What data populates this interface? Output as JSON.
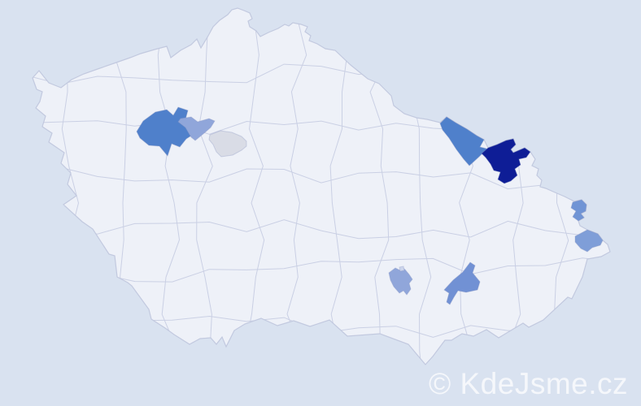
{
  "map": {
    "description": "Choropleth map of Czech Republic districts",
    "background_color": "#d9e2f0",
    "land_color": "#eef1f8",
    "district_border_color": "#c6cce2",
    "country_border_color": "#c2c9df",
    "highlighted_regions": [
      {
        "id": "district-central-west-large",
        "color": "#4f80cb"
      },
      {
        "id": "district-central-west-light",
        "color": "#90a6da"
      },
      {
        "id": "district-central-gray",
        "color": "#d9dce6"
      },
      {
        "id": "district-northeast-blue",
        "color": "#4f80cb"
      },
      {
        "id": "district-northeast-navy",
        "color": "#0e1d96"
      },
      {
        "id": "district-east-border-small",
        "color": "#7094d5"
      },
      {
        "id": "district-east-border-large",
        "color": "#7f9ed8"
      },
      {
        "id": "district-southeast-light",
        "color": "#90a6da"
      },
      {
        "id": "district-southeast-inner-patch",
        "color": "#ccd5ec"
      },
      {
        "id": "district-southeast-blue",
        "color": "#7191d4"
      }
    ]
  },
  "watermark": {
    "text": "© KdeJsme.cz",
    "color": "rgba(255,255,255,0.72)"
  }
}
